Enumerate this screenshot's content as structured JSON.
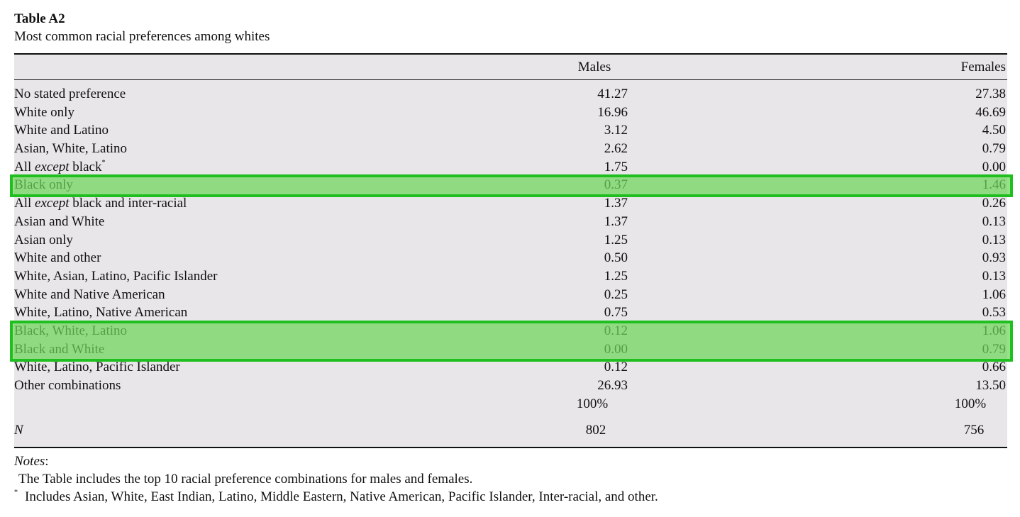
{
  "header": {
    "title": "Table A2",
    "subtitle": "Most common racial preferences among whites"
  },
  "table": {
    "columns": [
      "Males",
      "Females"
    ],
    "rows": [
      {
        "label": [
          "No stated preference"
        ],
        "values": [
          "41.27",
          "27.38"
        ]
      },
      {
        "label": [
          "White only"
        ],
        "values": [
          "16.96",
          "46.69"
        ]
      },
      {
        "label": [
          "White and Latino"
        ],
        "values": [
          "3.12",
          "4.50"
        ]
      },
      {
        "label": [
          "Asian, White, Latino"
        ],
        "values": [
          "2.62",
          "0.79"
        ]
      },
      {
        "label": [
          "All ",
          {
            "em": "except"
          },
          " black"
        ],
        "note_mark": "*",
        "values": [
          "1.75",
          "0.00"
        ]
      },
      {
        "label": [
          "Black only"
        ],
        "values": [
          "0.37",
          "1.46"
        ],
        "highlight": true
      },
      {
        "label": [
          "All ",
          {
            "em": "except"
          },
          " black and inter-racial"
        ],
        "values": [
          "1.37",
          "0.26"
        ]
      },
      {
        "label": [
          "Asian and White"
        ],
        "values": [
          "1.37",
          "0.13"
        ]
      },
      {
        "label": [
          "Asian only"
        ],
        "values": [
          "1.25",
          "0.13"
        ]
      },
      {
        "label": [
          "White and other"
        ],
        "values": [
          "0.50",
          "0.93"
        ]
      },
      {
        "label": [
          "White, Asian, Latino, Pacific Islander"
        ],
        "values": [
          "1.25",
          "0.13"
        ]
      },
      {
        "label": [
          "White and Native American"
        ],
        "values": [
          "0.25",
          "1.06"
        ]
      },
      {
        "label": [
          "White, Latino, Native American"
        ],
        "values": [
          "0.75",
          "0.53"
        ]
      },
      {
        "label": [
          "Black, White, Latino"
        ],
        "values": [
          "0.12",
          "1.06"
        ],
        "highlight": true
      },
      {
        "label": [
          "Black and White"
        ],
        "values": [
          "0.00",
          "0.79"
        ],
        "highlight": true
      },
      {
        "label": [
          "White, Latino, Pacific Islander"
        ],
        "values": [
          "0.12",
          "0.66"
        ]
      },
      {
        "label": [
          "Other combinations"
        ],
        "values": [
          "26.93",
          "13.50"
        ]
      }
    ],
    "totals": [
      "100%",
      "100%"
    ],
    "n": {
      "label": "N",
      "values": [
        "802",
        "756"
      ]
    }
  },
  "notes": {
    "heading": [
      {
        "em": "Notes"
      },
      ":"
    ],
    "lines": [
      {
        "text": "The Table includes the top 10 racial preference combinations for males and females."
      },
      {
        "mark": "*",
        "text": "Includes Asian, White, East Indian, Latino, Middle Eastern, Native American, Pacific Islander, Inter-racial, and other."
      }
    ]
  }
}
